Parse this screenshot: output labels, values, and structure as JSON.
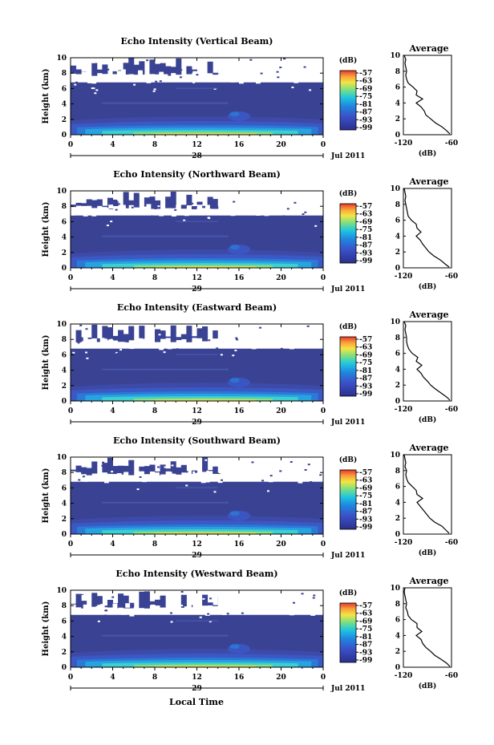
{
  "figure": {
    "bottom_xlabel": "Local Time",
    "colors": {
      "background_echo": "#3a4393",
      "low_echo": "#5a5fb3",
      "colormap": [
        "#2b2f8c",
        "#3b4fc7",
        "#1f86e0",
        "#20c7df",
        "#7ee07f",
        "#f3e544",
        "#f9a23a",
        "#e8372a"
      ]
    }
  },
  "chart_data": [
    {
      "type": "heatmap",
      "title": "Echo Intensity (Vertical Beam)",
      "ylabel": "Height (km)",
      "xticks": [
        "0",
        "4",
        "8",
        "12",
        "16",
        "20",
        "0"
      ],
      "yticks": [
        "0",
        "2",
        "4",
        "6",
        "8",
        "10"
      ],
      "ylim": [
        0,
        10
      ],
      "xlim": [
        0,
        24
      ],
      "day_label": "28",
      "month_year": "Jul 2011",
      "colorbar": {
        "label": "(dB)",
        "ticks": [
          "-57",
          "-63",
          "-69",
          "-75",
          "-81",
          "-87",
          "-93",
          "-99"
        ]
      },
      "average": {
        "title": "Average",
        "xlabel": "(dB)",
        "xticks": [
          "-120",
          "-60"
        ],
        "xlim": [
          -120,
          -60
        ],
        "yticks": [
          "0",
          "2",
          "4",
          "6",
          "8",
          "10"
        ],
        "profile_height": [
          0.1,
          0.5,
          1,
          1.5,
          2,
          2.5,
          3,
          3.5,
          4,
          4.5,
          5,
          5.5,
          6,
          6.5,
          7,
          7.5,
          8,
          8.5,
          9,
          9.5,
          10
        ],
        "profile_db": [
          -62,
          -66,
          -72,
          -80,
          -86,
          -92,
          -94,
          -98,
          -104,
          -96,
          -104,
          -103,
          -108,
          -114,
          -116,
          -117,
          -116,
          -117,
          -118,
          -117,
          -119
        ]
      }
    },
    {
      "type": "heatmap",
      "title": "Echo Intensity (Northward Beam)",
      "ylabel": "Height (km)",
      "xticks": [
        "0",
        "4",
        "8",
        "12",
        "16",
        "20",
        "0"
      ],
      "yticks": [
        "0",
        "2",
        "4",
        "6",
        "8",
        "10"
      ],
      "ylim": [
        0,
        10
      ],
      "xlim": [
        0,
        24
      ],
      "day_label": "29",
      "month_year": "Jul 2011",
      "colorbar": {
        "label": "(dB)",
        "ticks": [
          "-57",
          "-63",
          "-69",
          "-75",
          "-81",
          "-87",
          "-93",
          "-99"
        ]
      },
      "average": {
        "title": "Average",
        "xlabel": "(dB)",
        "xticks": [
          "-120",
          "-60"
        ],
        "xlim": [
          -120,
          -60
        ],
        "yticks": [
          "0",
          "2",
          "4",
          "6",
          "8",
          "10"
        ],
        "profile_height": [
          0.1,
          0.5,
          1,
          1.5,
          2,
          2.5,
          3,
          3.5,
          4,
          4.5,
          5,
          5.5,
          6,
          6.5,
          7,
          7.5,
          8,
          8.5,
          9,
          9.5,
          10
        ],
        "profile_db": [
          -63,
          -68,
          -74,
          -82,
          -88,
          -92,
          -96,
          -99,
          -104,
          -98,
          -103,
          -104,
          -110,
          -114,
          -115,
          -116,
          -117,
          -118,
          -117,
          -118,
          -119
        ]
      }
    },
    {
      "type": "heatmap",
      "title": "Echo Intensity (Eastward Beam)",
      "ylabel": "Height (km)",
      "xticks": [
        "0",
        "4",
        "8",
        "12",
        "16",
        "20",
        "0"
      ],
      "yticks": [
        "0",
        "2",
        "4",
        "6",
        "8",
        "10"
      ],
      "ylim": [
        0,
        10
      ],
      "xlim": [
        0,
        24
      ],
      "day_label": "29",
      "month_year": "Jul 2011",
      "colorbar": {
        "label": "(dB)",
        "ticks": [
          "-57",
          "-63",
          "-69",
          "-75",
          "-81",
          "-87",
          "-93",
          "-99"
        ]
      },
      "average": {
        "title": "Average",
        "xlabel": "(dB)",
        "xticks": [
          "-120",
          "-60"
        ],
        "xlim": [
          -120,
          -60
        ],
        "yticks": [
          "0",
          "2",
          "4",
          "6",
          "8",
          "10"
        ],
        "profile_height": [
          0.1,
          0.5,
          1,
          1.5,
          2,
          2.5,
          3,
          3.5,
          4,
          4.5,
          5,
          5.5,
          6,
          6.5,
          7,
          7.5,
          8,
          8.5,
          9,
          9.5,
          10
        ],
        "profile_db": [
          -62,
          -66,
          -73,
          -80,
          -86,
          -90,
          -95,
          -98,
          -103,
          -97,
          -104,
          -102,
          -109,
          -113,
          -115,
          -116,
          -116,
          -117,
          -118,
          -117,
          -119
        ]
      }
    },
    {
      "type": "heatmap",
      "title": "Echo Intensity (Southward Beam)",
      "ylabel": "Height (km)",
      "xticks": [
        "0",
        "4",
        "8",
        "12",
        "16",
        "20",
        "0"
      ],
      "yticks": [
        "0",
        "2",
        "4",
        "6",
        "8",
        "10"
      ],
      "ylim": [
        0,
        10
      ],
      "xlim": [
        0,
        24
      ],
      "day_label": "29",
      "month_year": "Jul 2011",
      "colorbar": {
        "label": "(dB)",
        "ticks": [
          "-57",
          "-63",
          "-69",
          "-75",
          "-81",
          "-87",
          "-93",
          "-99"
        ]
      },
      "average": {
        "title": "Average",
        "xlabel": "(dB)",
        "xticks": [
          "-120",
          "-60"
        ],
        "xlim": [
          -120,
          -60
        ],
        "yticks": [
          "0",
          "2",
          "4",
          "6",
          "8",
          "10"
        ],
        "profile_height": [
          0.1,
          0.5,
          1,
          1.5,
          2,
          2.5,
          3,
          3.5,
          4,
          4.5,
          5,
          5.5,
          6,
          6.5,
          7,
          7.5,
          8,
          8.5,
          9,
          9.5,
          10
        ],
        "profile_db": [
          -63,
          -67,
          -72,
          -81,
          -87,
          -91,
          -95,
          -99,
          -103,
          -96,
          -103,
          -104,
          -109,
          -114,
          -116,
          -117,
          -116,
          -118,
          -117,
          -118,
          -119
        ]
      }
    },
    {
      "type": "heatmap",
      "title": "Echo Intensity (Westward Beam)",
      "ylabel": "Height (km)",
      "xticks": [
        "0",
        "4",
        "8",
        "12",
        "16",
        "20",
        "0"
      ],
      "yticks": [
        "0",
        "2",
        "4",
        "6",
        "8",
        "10"
      ],
      "ylim": [
        0,
        10
      ],
      "xlim": [
        0,
        24
      ],
      "day_label": "29",
      "month_year": "Jul 2011",
      "colorbar": {
        "label": "(dB)",
        "ticks": [
          "-57",
          "-63",
          "-69",
          "-75",
          "-81",
          "-87",
          "-93",
          "-99"
        ]
      },
      "average": {
        "title": "Average",
        "xlabel": "(dB)",
        "xticks": [
          "-120",
          "-60"
        ],
        "xlim": [
          -120,
          -60
        ],
        "yticks": [
          "0",
          "2",
          "4",
          "6",
          "8",
          "10"
        ],
        "profile_height": [
          0.1,
          0.5,
          1,
          1.5,
          2,
          2.5,
          3,
          3.5,
          4,
          4.5,
          5,
          5.5,
          6,
          6.5,
          7,
          7.5,
          8,
          8.5,
          9,
          9.5,
          10
        ],
        "profile_db": [
          -62,
          -66,
          -73,
          -81,
          -86,
          -92,
          -96,
          -98,
          -104,
          -97,
          -103,
          -103,
          -110,
          -114,
          -115,
          -117,
          -116,
          -117,
          -118,
          -119,
          -118
        ]
      }
    }
  ]
}
